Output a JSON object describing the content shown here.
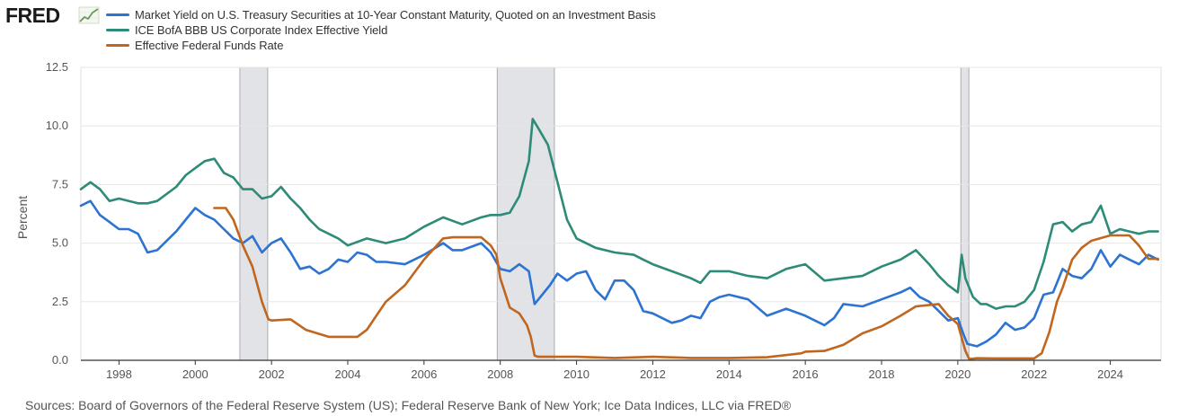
{
  "logo": {
    "text": "FRED",
    "icon": "chart-line-icon",
    "color": "#1a1a1a"
  },
  "sources": "Sources: Board of Governors of the Federal Reserve System (US); Federal Reserve Bank of New York; Ice Data Indices, LLC via FRED®",
  "chart_data": {
    "type": "line",
    "title": "",
    "xlabel": "",
    "ylabel": "Percent",
    "xlim": [
      1997.0,
      2025.33
    ],
    "ylim": [
      0,
      12.5
    ],
    "y_ticks": [
      0.0,
      2.5,
      5.0,
      7.5,
      10.0,
      12.5
    ],
    "y_tick_labels": [
      "0.0",
      "2.5",
      "5.0",
      "7.5",
      "10.0",
      "12.5"
    ],
    "x_ticks": [
      1998,
      2000,
      2002,
      2004,
      2006,
      2008,
      2010,
      2012,
      2014,
      2016,
      2018,
      2020,
      2022,
      2024
    ],
    "x_tick_labels": [
      "1998",
      "2000",
      "2002",
      "2004",
      "2006",
      "2008",
      "2010",
      "2012",
      "2014",
      "2016",
      "2018",
      "2020",
      "2022",
      "2024"
    ],
    "grid": "horizontal",
    "legend": "top-left",
    "recessions": [
      [
        2001.17,
        2001.9
      ],
      [
        2007.92,
        2009.42
      ],
      [
        2020.08,
        2020.29
      ]
    ],
    "recession_color": "#e1e3e7",
    "series": [
      {
        "name": "Market Yield on U.S. Treasury Securities at 10-Year Constant Maturity, Quoted on an Investment Basis",
        "color": "#2c73d2",
        "x": [
          1997.0,
          1997.25,
          1997.5,
          1997.75,
          1998.0,
          1998.25,
          1998.5,
          1998.75,
          1999.0,
          1999.5,
          1999.75,
          2000.0,
          2000.25,
          2000.5,
          2000.75,
          2001.0,
          2001.25,
          2001.5,
          2001.75,
          2002.0,
          2002.25,
          2002.5,
          2002.75,
          2003.0,
          2003.25,
          2003.5,
          2003.75,
          2004.0,
          2004.25,
          2004.5,
          2004.75,
          2005.0,
          2005.5,
          2006.0,
          2006.5,
          2006.75,
          2007.0,
          2007.5,
          2007.75,
          2008.0,
          2008.25,
          2008.5,
          2008.75,
          2008.9,
          2009.1,
          2009.3,
          2009.5,
          2009.75,
          2010.0,
          2010.25,
          2010.5,
          2010.75,
          2011.0,
          2011.25,
          2011.5,
          2011.75,
          2012.0,
          2012.5,
          2012.75,
          2013.0,
          2013.25,
          2013.5,
          2013.75,
          2014.0,
          2014.5,
          2015.0,
          2015.5,
          2016.0,
          2016.5,
          2016.75,
          2017.0,
          2017.5,
          2018.0,
          2018.5,
          2018.75,
          2019.0,
          2019.25,
          2019.5,
          2019.75,
          2020.0,
          2020.15,
          2020.25,
          2020.5,
          2020.75,
          2021.0,
          2021.25,
          2021.5,
          2021.75,
          2022.0,
          2022.25,
          2022.5,
          2022.75,
          2023.0,
          2023.25,
          2023.5,
          2023.75,
          2024.0,
          2024.25,
          2024.5,
          2024.75,
          2025.0,
          2025.25
        ],
        "y": [
          6.6,
          6.8,
          6.2,
          5.9,
          5.6,
          5.6,
          5.4,
          4.6,
          4.7,
          5.5,
          6.0,
          6.5,
          6.2,
          6.0,
          5.6,
          5.2,
          5.0,
          5.3,
          4.6,
          5.0,
          5.2,
          4.6,
          3.9,
          4.0,
          3.7,
          3.9,
          4.3,
          4.2,
          4.6,
          4.5,
          4.2,
          4.2,
          4.1,
          4.5,
          5.0,
          4.7,
          4.7,
          5.0,
          4.6,
          3.9,
          3.8,
          4.1,
          3.8,
          2.4,
          2.8,
          3.2,
          3.7,
          3.4,
          3.7,
          3.8,
          3.0,
          2.6,
          3.4,
          3.4,
          3.0,
          2.1,
          2.0,
          1.6,
          1.7,
          1.9,
          1.8,
          2.5,
          2.7,
          2.8,
          2.6,
          1.9,
          2.2,
          1.9,
          1.5,
          1.8,
          2.4,
          2.3,
          2.6,
          2.9,
          3.1,
          2.7,
          2.5,
          2.1,
          1.7,
          1.8,
          1.1,
          0.7,
          0.6,
          0.8,
          1.1,
          1.6,
          1.3,
          1.4,
          1.8,
          2.8,
          2.9,
          3.9,
          3.6,
          3.5,
          3.9,
          4.7,
          4.0,
          4.5,
          4.3,
          4.1,
          4.5,
          4.3
        ]
      },
      {
        "name": "ICE BofA BBB US Corporate Index Effective Yield",
        "color": "#2e8b78",
        "x": [
          1997.0,
          1997.25,
          1997.5,
          1997.75,
          1998.0,
          1998.5,
          1998.75,
          1999.0,
          1999.5,
          1999.75,
          2000.0,
          2000.25,
          2000.5,
          2000.75,
          2001.0,
          2001.25,
          2001.5,
          2001.75,
          2002.0,
          2002.25,
          2002.5,
          2002.75,
          2003.0,
          2003.25,
          2003.5,
          2003.75,
          2004.0,
          2004.5,
          2005.0,
          2005.5,
          2006.0,
          2006.5,
          2007.0,
          2007.5,
          2007.75,
          2008.0,
          2008.25,
          2008.5,
          2008.75,
          2008.85,
          2009.0,
          2009.25,
          2009.5,
          2009.75,
          2010.0,
          2010.5,
          2011.0,
          2011.5,
          2011.75,
          2012.0,
          2012.5,
          2013.0,
          2013.25,
          2013.5,
          2014.0,
          2014.5,
          2015.0,
          2015.5,
          2016.0,
          2016.5,
          2017.0,
          2017.5,
          2018.0,
          2018.5,
          2018.9,
          2019.25,
          2019.5,
          2019.75,
          2020.0,
          2020.1,
          2020.2,
          2020.4,
          2020.6,
          2020.75,
          2021.0,
          2021.25,
          2021.5,
          2021.75,
          2022.0,
          2022.25,
          2022.5,
          2022.75,
          2023.0,
          2023.25,
          2023.5,
          2023.75,
          2024.0,
          2024.25,
          2024.5,
          2024.75,
          2025.0,
          2025.25
        ],
        "y": [
          7.3,
          7.6,
          7.3,
          6.8,
          6.9,
          6.7,
          6.7,
          6.8,
          7.4,
          7.9,
          8.2,
          8.5,
          8.6,
          8.0,
          7.8,
          7.3,
          7.3,
          6.9,
          7.0,
          7.4,
          6.9,
          6.5,
          6.0,
          5.6,
          5.4,
          5.2,
          4.9,
          5.2,
          5.0,
          5.2,
          5.7,
          6.1,
          5.8,
          6.1,
          6.2,
          6.2,
          6.3,
          7.0,
          8.5,
          10.3,
          9.9,
          9.2,
          7.6,
          6.0,
          5.2,
          4.8,
          4.6,
          4.5,
          4.3,
          4.1,
          3.8,
          3.5,
          3.3,
          3.8,
          3.8,
          3.6,
          3.5,
          3.9,
          4.1,
          3.4,
          3.5,
          3.6,
          4.0,
          4.3,
          4.7,
          4.1,
          3.6,
          3.2,
          2.9,
          4.5,
          3.5,
          2.7,
          2.4,
          2.4,
          2.2,
          2.3,
          2.3,
          2.5,
          3.0,
          4.2,
          5.8,
          5.9,
          5.5,
          5.8,
          5.9,
          6.6,
          5.4,
          5.6,
          5.5,
          5.4,
          5.5,
          5.5
        ]
      },
      {
        "name": "Effective Federal Funds Rate",
        "color": "#c0661f",
        "x": [
          2000.5,
          2000.8,
          2001.0,
          2001.25,
          2001.5,
          2001.75,
          2001.92,
          2002.0,
          2002.5,
          2002.9,
          2003.0,
          2003.5,
          2003.8,
          2004.0,
          2004.25,
          2004.5,
          2004.75,
          2005.0,
          2005.5,
          2006.0,
          2006.5,
          2006.75,
          2007.0,
          2007.5,
          2007.75,
          2007.9,
          2008.0,
          2008.1,
          2008.25,
          2008.5,
          2008.7,
          2008.8,
          2008.9,
          2009.0,
          2009.5,
          2010.0,
          2011.0,
          2012.0,
          2013.0,
          2014.0,
          2015.0,
          2015.9,
          2016.0,
          2016.5,
          2017.0,
          2017.5,
          2018.0,
          2018.5,
          2018.9,
          2019.5,
          2019.75,
          2020.0,
          2020.2,
          2020.3,
          2020.5,
          2021.0,
          2022.0,
          2022.2,
          2022.4,
          2022.6,
          2022.75,
          2023.0,
          2023.25,
          2023.5,
          2024.0,
          2024.5,
          2024.75,
          2025.0,
          2025.25
        ],
        "y": [
          6.5,
          6.5,
          6.0,
          4.9,
          4.0,
          2.5,
          1.75,
          1.7,
          1.75,
          1.3,
          1.25,
          1.0,
          1.0,
          1.0,
          1.0,
          1.3,
          1.9,
          2.5,
          3.2,
          4.3,
          5.2,
          5.25,
          5.25,
          5.25,
          4.9,
          4.5,
          3.5,
          3.0,
          2.25,
          2.0,
          1.5,
          1.0,
          0.2,
          0.15,
          0.15,
          0.15,
          0.1,
          0.15,
          0.1,
          0.1,
          0.13,
          0.3,
          0.37,
          0.4,
          0.66,
          1.15,
          1.45,
          1.9,
          2.3,
          2.4,
          1.9,
          1.55,
          0.4,
          0.05,
          0.09,
          0.08,
          0.08,
          0.3,
          1.2,
          2.5,
          3.1,
          4.3,
          4.8,
          5.1,
          5.33,
          5.33,
          4.9,
          4.33,
          4.33
        ]
      }
    ]
  }
}
